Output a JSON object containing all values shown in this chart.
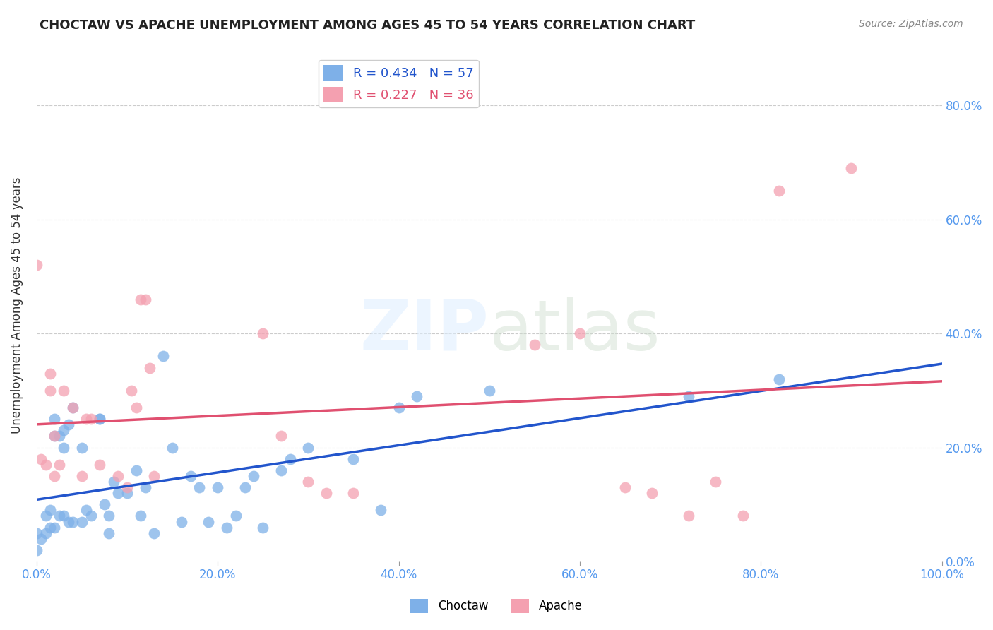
{
  "title": "CHOCTAW VS APACHE UNEMPLOYMENT AMONG AGES 45 TO 54 YEARS CORRELATION CHART",
  "source": "Source: ZipAtlas.com",
  "ylabel": "Unemployment Among Ages 45 to 54 years",
  "xlim": [
    0.0,
    1.0
  ],
  "ylim": [
    0.0,
    0.9
  ],
  "xticks": [
    0.0,
    0.2,
    0.4,
    0.6,
    0.8,
    1.0
  ],
  "yticks": [
    0.0,
    0.2,
    0.4,
    0.6,
    0.8
  ],
  "xtick_labels": [
    "0.0%",
    "20.0%",
    "40.0%",
    "60.0%",
    "80.0%",
    "100.0%"
  ],
  "right_ytick_labels": [
    "0.0%",
    "20.0%",
    "40.0%",
    "60.0%",
    "80.0%"
  ],
  "choctaw_color": "#7EB0E8",
  "apache_color": "#F4A0B0",
  "choctaw_line_color": "#2255CC",
  "apache_line_color": "#E05070",
  "choctaw_R": 0.434,
  "choctaw_N": 57,
  "apache_R": 0.227,
  "apache_N": 36,
  "background_color": "#FFFFFF",
  "grid_color": "#CCCCCC",
  "choctaw_x": [
    0.0,
    0.0,
    0.005,
    0.01,
    0.01,
    0.015,
    0.015,
    0.02,
    0.02,
    0.02,
    0.025,
    0.025,
    0.03,
    0.03,
    0.03,
    0.035,
    0.035,
    0.04,
    0.04,
    0.05,
    0.05,
    0.055,
    0.06,
    0.07,
    0.07,
    0.075,
    0.08,
    0.08,
    0.085,
    0.09,
    0.1,
    0.11,
    0.115,
    0.12,
    0.13,
    0.14,
    0.15,
    0.16,
    0.17,
    0.18,
    0.19,
    0.2,
    0.21,
    0.22,
    0.23,
    0.24,
    0.25,
    0.27,
    0.28,
    0.3,
    0.35,
    0.38,
    0.4,
    0.42,
    0.5,
    0.72,
    0.82
  ],
  "choctaw_y": [
    0.05,
    0.02,
    0.04,
    0.08,
    0.05,
    0.09,
    0.06,
    0.25,
    0.22,
    0.06,
    0.22,
    0.08,
    0.23,
    0.2,
    0.08,
    0.24,
    0.07,
    0.27,
    0.07,
    0.2,
    0.07,
    0.09,
    0.08,
    0.25,
    0.25,
    0.1,
    0.08,
    0.05,
    0.14,
    0.12,
    0.12,
    0.16,
    0.08,
    0.13,
    0.05,
    0.36,
    0.2,
    0.07,
    0.15,
    0.13,
    0.07,
    0.13,
    0.06,
    0.08,
    0.13,
    0.15,
    0.06,
    0.16,
    0.18,
    0.2,
    0.18,
    0.09,
    0.27,
    0.29,
    0.3,
    0.29,
    0.32
  ],
  "apache_x": [
    0.0,
    0.005,
    0.01,
    0.015,
    0.015,
    0.02,
    0.02,
    0.025,
    0.03,
    0.04,
    0.05,
    0.055,
    0.06,
    0.07,
    0.09,
    0.1,
    0.105,
    0.11,
    0.115,
    0.12,
    0.125,
    0.13,
    0.25,
    0.27,
    0.3,
    0.32,
    0.35,
    0.55,
    0.6,
    0.65,
    0.68,
    0.72,
    0.75,
    0.78,
    0.82,
    0.9
  ],
  "apache_y": [
    0.52,
    0.18,
    0.17,
    0.33,
    0.3,
    0.22,
    0.15,
    0.17,
    0.3,
    0.27,
    0.15,
    0.25,
    0.25,
    0.17,
    0.15,
    0.13,
    0.3,
    0.27,
    0.46,
    0.46,
    0.34,
    0.15,
    0.4,
    0.22,
    0.14,
    0.12,
    0.12,
    0.38,
    0.4,
    0.13,
    0.12,
    0.08,
    0.14,
    0.08,
    0.65,
    0.69
  ]
}
